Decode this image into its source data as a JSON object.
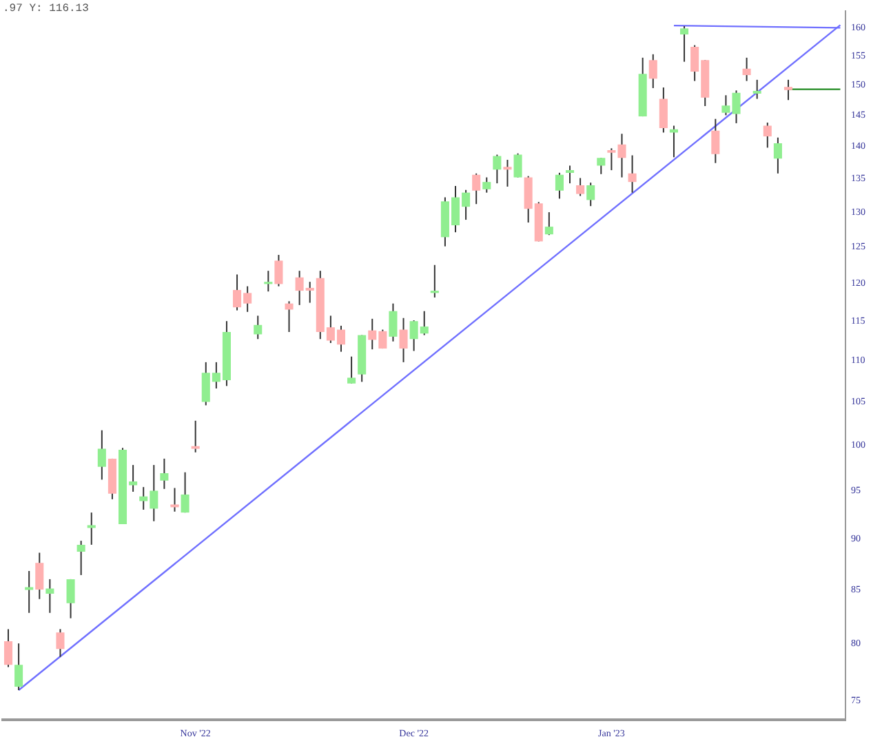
{
  "chart_data": {
    "type": "candlestick",
    "annotations": [
      ".97 Y: 116.13"
    ],
    "categories": [
      null,
      null,
      null,
      null,
      null,
      null,
      null,
      null,
      null,
      null,
      null,
      null,
      null,
      null,
      null,
      null,
      null,
      null,
      "Nov '22",
      null,
      null,
      null,
      null,
      null,
      null,
      null,
      null,
      null,
      null,
      null,
      null,
      null,
      null,
      null,
      null,
      null,
      null,
      null,
      null,
      "Dec '22",
      null,
      null,
      null,
      null,
      null,
      null,
      null,
      null,
      null,
      null,
      null,
      null,
      null,
      null,
      null,
      null,
      null,
      null,
      "Jan '23",
      null,
      null,
      null,
      null,
      null,
      null,
      null,
      null,
      null,
      null,
      null,
      null,
      null,
      null,
      null,
      null,
      null,
      null,
      null,
      null,
      null,
      null
    ],
    "ohlc": [
      [
        80.2,
        81.3,
        77.9,
        78.1
      ],
      [
        76.2,
        80.0,
        75.9,
        78.1
      ],
      [
        85.1,
        86.8,
        82.8,
        85.1
      ],
      [
        87.6,
        88.6,
        84.1,
        85.0
      ],
      [
        84.6,
        86.0,
        82.8,
        85.1
      ],
      [
        81.0,
        81.3,
        78.8,
        79.5
      ],
      [
        83.7,
        86.0,
        82.3,
        86.0
      ],
      [
        88.7,
        89.8,
        86.4,
        89.4
      ],
      [
        91.1,
        92.7,
        89.4,
        91.4
      ],
      [
        97.6,
        101.7,
        96.2,
        99.6
      ],
      [
        98.5,
        98.5,
        94.1,
        94.7
      ],
      [
        91.5,
        99.7,
        91.5,
        99.5
      ],
      [
        95.6,
        97.8,
        94.9,
        96.0
      ],
      [
        93.9,
        95.4,
        93.0,
        94.4
      ],
      [
        93.1,
        97.8,
        91.8,
        95.0
      ],
      [
        96.1,
        98.5,
        95.2,
        96.9
      ],
      [
        93.5,
        95.3,
        92.8,
        93.4
      ],
      [
        92.7,
        97.0,
        92.7,
        94.6
      ],
      [
        99.9,
        102.8,
        99.2,
        99.6
      ],
      [
        105.0,
        109.8,
        104.6,
        108.5
      ],
      [
        107.4,
        109.8,
        106.6,
        108.5
      ],
      [
        107.6,
        115.0,
        106.9,
        113.6
      ],
      [
        119.1,
        121.2,
        116.4,
        116.8
      ],
      [
        118.7,
        119.6,
        116.2,
        117.3
      ],
      [
        113.3,
        115.7,
        112.7,
        114.5
      ],
      [
        119.9,
        121.7,
        118.9,
        120.2
      ],
      [
        123.1,
        123.9,
        119.6,
        119.9
      ],
      [
        117.3,
        117.6,
        113.6,
        116.5
      ],
      [
        120.8,
        121.7,
        117.1,
        119.0
      ],
      [
        119.3,
        120.2,
        117.4,
        119.2
      ],
      [
        120.7,
        121.7,
        112.7,
        113.6
      ],
      [
        114.2,
        115.7,
        112.2,
        112.5
      ],
      [
        113.9,
        114.4,
        111.1,
        112.0
      ],
      [
        107.2,
        110.5,
        107.2,
        107.9
      ],
      [
        108.3,
        113.2,
        107.4,
        113.2
      ],
      [
        113.8,
        115.3,
        111.4,
        112.6
      ],
      [
        113.7,
        113.9,
        111.5,
        111.5
      ],
      [
        113.0,
        117.3,
        112.4,
        116.3
      ],
      [
        113.9,
        115.4,
        109.8,
        111.5
      ],
      [
        112.7,
        115.1,
        111.2,
        115.0
      ],
      [
        113.4,
        116.3,
        113.2,
        114.3
      ],
      [
        118.7,
        122.5,
        118.1,
        119.0
      ],
      [
        126.4,
        132.2,
        125.1,
        131.6
      ],
      [
        128.1,
        133.9,
        127.1,
        132.2
      ],
      [
        130.8,
        133.3,
        128.9,
        132.9
      ],
      [
        135.6,
        135.8,
        131.2,
        133.2
      ],
      [
        133.4,
        135.2,
        132.9,
        134.5
      ],
      [
        136.4,
        138.7,
        134.3,
        138.5
      ],
      [
        136.8,
        137.9,
        133.8,
        136.4
      ],
      [
        135.2,
        138.9,
        135.2,
        138.7
      ],
      [
        135.2,
        135.4,
        128.5,
        130.5
      ],
      [
        131.3,
        131.5,
        125.8,
        125.8
      ],
      [
        126.8,
        130.0,
        126.7,
        127.9
      ],
      [
        133.2,
        135.9,
        132.0,
        135.6
      ],
      [
        135.9,
        137.0,
        134.3,
        136.1
      ],
      [
        134.0,
        135.1,
        132.4,
        132.7
      ],
      [
        131.8,
        134.4,
        130.9,
        134.0
      ],
      [
        137.0,
        138.2,
        135.7,
        138.2
      ],
      [
        139.4,
        139.7,
        136.3,
        139.0
      ],
      [
        140.3,
        142.0,
        135.2,
        138.2
      ],
      [
        135.8,
        138.6,
        132.9,
        134.5
      ],
      [
        144.8,
        154.7,
        144.8,
        151.9
      ],
      [
        154.3,
        155.3,
        149.5,
        151.1
      ],
      [
        147.7,
        149.6,
        142.2,
        142.9
      ],
      [
        142.2,
        143.3,
        138.3,
        142.5
      ],
      [
        158.8,
        160.3,
        154.0,
        159.9
      ],
      [
        156.6,
        156.9,
        150.7,
        152.3
      ],
      [
        154.3,
        154.3,
        146.5,
        147.9
      ],
      [
        142.5,
        144.4,
        137.4,
        138.8
      ],
      [
        145.4,
        148.3,
        145.0,
        146.6
      ],
      [
        145.2,
        149.1,
        143.7,
        148.7
      ],
      [
        152.8,
        154.7,
        150.7,
        151.7
      ],
      [
        148.8,
        150.9,
        147.7,
        148.8
      ],
      [
        143.3,
        143.8,
        139.8,
        141.6
      ],
      [
        138.1,
        141.4,
        135.8,
        140.5
      ],
      [
        149.7,
        150.9,
        147.5,
        149.4
      ],
      null,
      null,
      null,
      null,
      null
    ],
    "colors": [
      "#ffb0b0",
      "#90ee90",
      "#90ee90",
      "#ffb0b0",
      "#90ee90",
      "#ffb0b0",
      "#90ee90",
      "#90ee90",
      "#90ee90",
      "#90ee90",
      "#ffb0b0",
      "#90ee90",
      "#90ee90",
      "#90ee90",
      "#90ee90",
      "#90ee90",
      "#ffb0b0",
      "#90ee90",
      "#ffb0b0",
      "#90ee90",
      "#90ee90",
      "#90ee90",
      "#ffb0b0",
      "#ffb0b0",
      "#90ee90",
      "#90ee90",
      "#ffb0b0",
      "#ffb0b0",
      "#ffb0b0",
      "#ffb0b0",
      "#ffb0b0",
      "#ffb0b0",
      "#ffb0b0",
      "#90ee90",
      "#90ee90",
      "#ffb0b0",
      "#ffb0b0",
      "#90ee90",
      "#ffb0b0",
      "#90ee90",
      "#90ee90",
      "#90ee90",
      "#90ee90",
      "#90ee90",
      "#90ee90",
      "#ffb0b0",
      "#90ee90",
      "#90ee90",
      "#ffb0b0",
      "#90ee90",
      "#ffb0b0",
      "#ffb0b0",
      "#90ee90",
      "#90ee90",
      "#90ee90",
      "#ffb0b0",
      "#90ee90",
      "#90ee90",
      "#ffb0b0",
      "#ffb0b0",
      "#ffb0b0",
      "#90ee90",
      "#ffb0b0",
      "#ffb0b0",
      "#90ee90",
      "#90ee90",
      "#ffb0b0",
      "#ffb0b0",
      "#ffb0b0",
      "#90ee90",
      "#90ee90",
      "#ffb0b0",
      "#90ee90",
      "#ffb0b0",
      "#90ee90",
      "#ffb0b0",
      null,
      null,
      null,
      null,
      null
    ],
    "series": [
      {
        "type": "line",
        "color": "#7070ff",
        "values": [
          null,
          75.9,
          null,
          null,
          null,
          null,
          null,
          null,
          null,
          null,
          null,
          null,
          null,
          null,
          null,
          null,
          null,
          null,
          null,
          null,
          null,
          null,
          null,
          null,
          null,
          null,
          null,
          null,
          null,
          null,
          null,
          null,
          null,
          null,
          null,
          null,
          null,
          null,
          null,
          null,
          null,
          null,
          null,
          null,
          null,
          null,
          null,
          null,
          null,
          null,
          null,
          null,
          null,
          null,
          null,
          null,
          null,
          null,
          null,
          null,
          null,
          null,
          null,
          null,
          null,
          null,
          null,
          null,
          null,
          null,
          null,
          null,
          null,
          null,
          null,
          null,
          null,
          null,
          null,
          null,
          160.5
        ]
      },
      {
        "type": "line",
        "color": "#7070ff",
        "values": [
          null,
          null,
          null,
          null,
          null,
          null,
          null,
          null,
          null,
          null,
          null,
          null,
          null,
          null,
          null,
          null,
          null,
          null,
          null,
          null,
          null,
          null,
          null,
          null,
          null,
          null,
          null,
          null,
          null,
          null,
          null,
          null,
          null,
          null,
          null,
          null,
          null,
          null,
          null,
          null,
          null,
          null,
          null,
          null,
          null,
          null,
          null,
          null,
          null,
          null,
          null,
          null,
          null,
          null,
          null,
          null,
          null,
          null,
          null,
          null,
          null,
          null,
          null,
          null,
          160.4,
          null,
          null,
          null,
          null,
          null,
          null,
          null,
          null,
          null,
          null,
          null,
          null,
          null,
          null,
          null,
          160.0
        ]
      },
      {
        "type": "line",
        "color": "#228b22",
        "values": [
          null,
          null,
          null,
          null,
          null,
          null,
          null,
          null,
          null,
          null,
          null,
          null,
          null,
          null,
          null,
          null,
          null,
          null,
          null,
          null,
          null,
          null,
          null,
          null,
          null,
          null,
          null,
          null,
          null,
          null,
          null,
          null,
          null,
          null,
          null,
          null,
          null,
          null,
          null,
          null,
          null,
          null,
          null,
          null,
          null,
          null,
          null,
          null,
          null,
          null,
          null,
          null,
          null,
          null,
          null,
          null,
          null,
          null,
          null,
          null,
          null,
          null,
          null,
          null,
          null,
          null,
          null,
          null,
          null,
          null,
          null,
          null,
          null,
          null,
          null,
          149.3,
          149.3,
          149.3,
          149.3,
          149.3,
          149.3
        ]
      }
    ],
    "ylim": [
      73.4,
      163.0
    ],
    "yticks": [
      75,
      80,
      85,
      90,
      95,
      100,
      105,
      110,
      115,
      120,
      125,
      130,
      135,
      140,
      145,
      150,
      155,
      160
    ],
    "log": "y",
    "grid": false,
    "legend": false
  }
}
